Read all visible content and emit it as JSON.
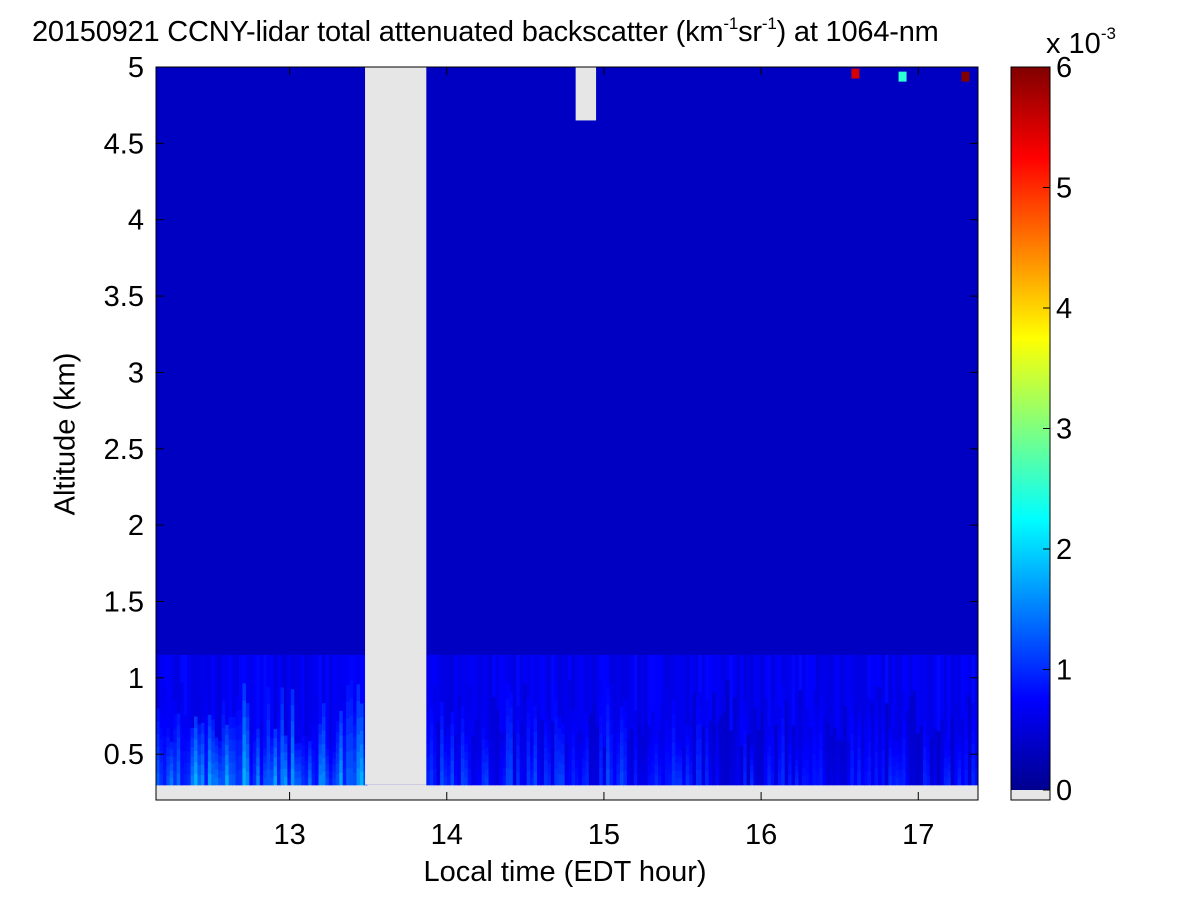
{
  "chart_data": {
    "type": "heatmap",
    "title_main": "20150921 CCNY-lidar total attenuated backscatter (km",
    "title_sup1": "-1",
    "title_mid": "sr",
    "title_sup2": "-1",
    "title_end": ") at 1064-nm",
    "xlabel": "Local time (EDT hour)",
    "ylabel": "Altitude (km)",
    "xlim": [
      12.15,
      17.38
    ],
    "ylim": [
      0.2,
      5.0
    ],
    "xticks": [
      "13",
      "14",
      "15",
      "16",
      "17"
    ],
    "yticks": [
      "0.5",
      "1",
      "1.5",
      "2",
      "2.5",
      "3",
      "3.5",
      "4",
      "4.5",
      "5"
    ],
    "colormap": "jet",
    "colorbar": {
      "range": [
        0,
        6
      ],
      "ticks": [
        "0",
        "1",
        "2",
        "3",
        "4",
        "5",
        "6"
      ],
      "exponent_base": "x 10",
      "exponent": "-3",
      "no_data_color": "#e6e6e6"
    },
    "data_bottom_km": 0.3,
    "no_data_periods": [
      {
        "x": [
          13.48,
          13.87
        ],
        "y_from_km": 0.3
      },
      {
        "x": [
          14.82,
          14.95
        ],
        "y_from_km": 4.65
      }
    ],
    "background_value": 0.4,
    "boundary_layer": {
      "top_km": 1.15,
      "peak_values": [
        {
          "x_range": [
            12.15,
            13.48
          ],
          "value": 1.8
        },
        {
          "x_range": [
            13.87,
            15.6
          ],
          "value": 1.2
        },
        {
          "x_range": [
            15.6,
            17.38
          ],
          "value": 1.0
        }
      ]
    },
    "upper_features": [
      {
        "x": 16.9,
        "y": 4.95,
        "value": 2.5
      },
      {
        "x": 17.3,
        "y": 4.95,
        "value": 6.0
      },
      {
        "x": 16.6,
        "y": 4.97,
        "value": 5.5
      }
    ]
  }
}
